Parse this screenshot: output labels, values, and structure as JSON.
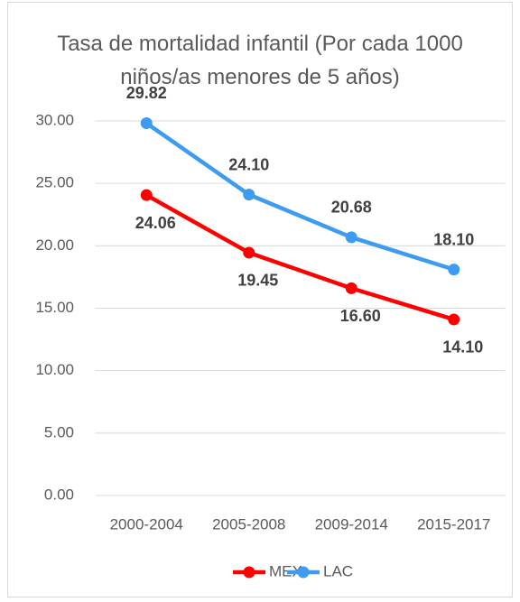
{
  "chart_data": {
    "type": "line",
    "title": "Tasa de mortalidad infantil (Por cada 1000 niños/as menores de 5 años)",
    "categories": [
      "2000-2004",
      "2005-2008",
      "2009-2014",
      "2015-2017"
    ],
    "series": [
      {
        "name": "MEX",
        "color": "#ff0000",
        "values": [
          24.06,
          19.45,
          16.6,
          14.1
        ],
        "value_labels": [
          "24.06",
          "19.45",
          "16.60",
          "14.10"
        ]
      },
      {
        "name": "LAC",
        "color": "#3d9cf0",
        "values": [
          29.82,
          24.1,
          20.68,
          18.1
        ],
        "value_labels": [
          "29.82",
          "24.10",
          "20.68",
          "18.10"
        ]
      }
    ],
    "ylim": [
      0,
      30
    ],
    "yticks": [
      {
        "value": 0,
        "label": "0.00"
      },
      {
        "value": 5,
        "label": "5.00"
      },
      {
        "value": 10,
        "label": "10.00"
      },
      {
        "value": 15,
        "label": "15.00"
      },
      {
        "value": 20,
        "label": "20.00"
      },
      {
        "value": 25,
        "label": "25.00"
      },
      {
        "value": 30,
        "label": "30.00"
      }
    ],
    "grid": true,
    "legend": "bottom"
  }
}
